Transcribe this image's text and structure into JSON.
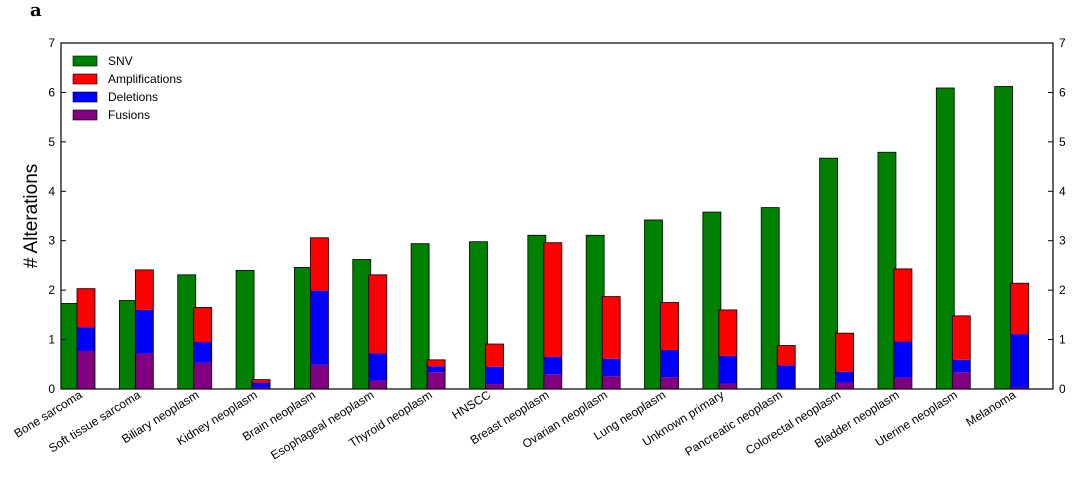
{
  "panel_label": "a",
  "chart_data": {
    "type": "bar",
    "ylabel": "# Alterations",
    "xlabel": "",
    "ylim": [
      0,
      7
    ],
    "yticks": [
      0,
      1,
      2,
      3,
      4,
      5,
      6,
      7
    ],
    "grid": false,
    "legend_position": "top-left",
    "categories": [
      "Bone sarcoma",
      "Soft tissue sarcoma",
      "Biliary neoplasm",
      "Kidney neoplasm",
      "Brain neoplasm",
      "Esophageal neoplasm",
      "Thyroid neoplasm",
      "HNSCC",
      "Breast neoplasm",
      "Ovarian neoplasm",
      "Lung neoplasm",
      "Unknown primary",
      "Pancreatic neoplasm",
      "Colorectal neoplasm",
      "Bladder neoplasm",
      "Uterine neoplasm",
      "Melanoma"
    ],
    "series": [
      {
        "name": "SNV",
        "color": "#008000",
        "stack": "snv",
        "values": [
          1.73,
          1.79,
          2.31,
          2.4,
          2.46,
          2.62,
          2.94,
          2.98,
          3.11,
          3.11,
          3.42,
          3.58,
          3.67,
          4.67,
          4.79,
          6.09,
          6.12
        ]
      },
      {
        "name": "Amplifications",
        "color": "#ff0000",
        "stack": "cnv",
        "values": [
          0.78,
          0.81,
          0.7,
          0.06,
          1.07,
          1.59,
          0.13,
          0.46,
          2.31,
          1.26,
          0.96,
          0.93,
          0.4,
          0.78,
          1.47,
          0.89,
          1.03
        ]
      },
      {
        "name": "Deletions",
        "color": "#0000ff",
        "stack": "cnv",
        "values": [
          0.48,
          0.88,
          0.42,
          0.1,
          1.5,
          0.55,
          0.12,
          0.35,
          0.35,
          0.35,
          0.55,
          0.56,
          0.48,
          0.22,
          0.73,
          0.25,
          1.08
        ]
      },
      {
        "name": "Fusions",
        "color": "#800080",
        "stack": "cnv",
        "values": [
          0.77,
          0.72,
          0.53,
          0.03,
          0.49,
          0.17,
          0.34,
          0.1,
          0.3,
          0.26,
          0.24,
          0.11,
          0.0,
          0.13,
          0.23,
          0.34,
          0.03
        ]
      }
    ]
  }
}
